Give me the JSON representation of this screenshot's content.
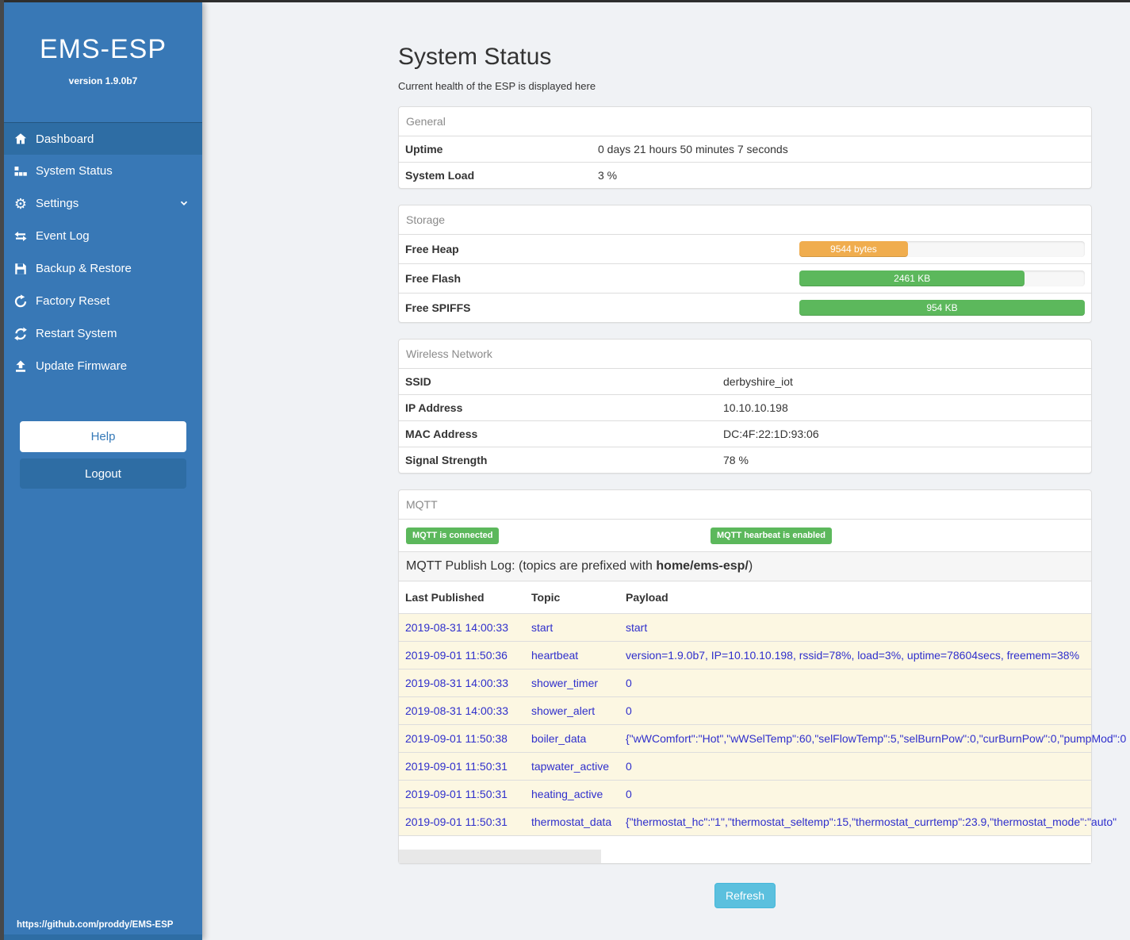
{
  "sidebar": {
    "brand": "EMS-ESP",
    "version": "version 1.9.0b7",
    "items": [
      {
        "label": "Dashboard",
        "icon": "home-icon",
        "active": true
      },
      {
        "label": "System Status",
        "icon": "chart-blocks-icon",
        "active": false
      },
      {
        "label": "Settings",
        "icon": "gear-icon",
        "active": false,
        "chevron": "chevron-down-icon"
      },
      {
        "label": "Event Log",
        "icon": "exchange-arrows-icon",
        "active": false
      },
      {
        "label": "Backup & Restore",
        "icon": "floppy-icon",
        "active": false
      },
      {
        "label": "Factory Reset",
        "icon": "rotate-arrow-icon",
        "active": false
      },
      {
        "label": "Restart System",
        "icon": "refresh-arrows-icon",
        "active": false
      },
      {
        "label": "Update Firmware",
        "icon": "upload-icon",
        "active": false
      }
    ],
    "help_label": "Help",
    "logout_label": "Logout",
    "footer_link": "https://github.com/proddy/EMS-ESP"
  },
  "page": {
    "title": "System Status",
    "subtitle": "Current health of the ESP is displayed here",
    "refresh_label": "Refresh"
  },
  "general": {
    "heading": "General",
    "rows": [
      {
        "label": "Uptime",
        "value": "0 days 21 hours 50 minutes 7 seconds"
      },
      {
        "label": "System Load",
        "value": "3 %"
      }
    ]
  },
  "storage": {
    "heading": "Storage",
    "rows": [
      {
        "label": "Free Heap",
        "value": "9544 bytes",
        "percent": 38,
        "color": "#f0ad4e"
      },
      {
        "label": "Free Flash",
        "value": "2461 KB",
        "percent": 79,
        "color": "#5cb85c"
      },
      {
        "label": "Free SPIFFS",
        "value": "954 KB",
        "percent": 100,
        "color": "#5cb85c"
      }
    ]
  },
  "wireless": {
    "heading": "Wireless Network",
    "rows": [
      {
        "label": "SSID",
        "value": "derbyshire_iot"
      },
      {
        "label": "IP Address",
        "value": "10.10.10.198"
      },
      {
        "label": "MAC Address",
        "value": "DC:4F:22:1D:93:06"
      },
      {
        "label": "Signal Strength",
        "value": "78 %"
      }
    ]
  },
  "mqtt": {
    "heading": "MQTT",
    "badges": [
      "MQTT is connected",
      "MQTT hearbeat is enabled"
    ],
    "log_title_prefix": "MQTT Publish Log: (topics are prefixed with ",
    "log_title_bold": "home/ems-esp/",
    "log_title_suffix": ")",
    "columns": [
      "Last Published",
      "Topic",
      "Payload"
    ],
    "rows": [
      {
        "published": "2019-08-31 14:00:33",
        "topic": "start",
        "payload": "start"
      },
      {
        "published": "2019-09-01 11:50:36",
        "topic": "heartbeat",
        "payload": "version=1.9.0b7, IP=10.10.10.198, rssid=78%, load=3%, uptime=78604secs, freemem=38%"
      },
      {
        "published": "2019-08-31 14:00:33",
        "topic": "shower_timer",
        "payload": "0"
      },
      {
        "published": "2019-08-31 14:00:33",
        "topic": "shower_alert",
        "payload": "0"
      },
      {
        "published": "2019-09-01 11:50:38",
        "topic": "boiler_data",
        "payload": "{\"wWComfort\":\"Hot\",\"wWSelTemp\":60,\"selFlowTemp\":5,\"selBurnPow\":0,\"curBurnPow\":0,\"pumpMod\":0"
      },
      {
        "published": "2019-09-01 11:50:31",
        "topic": "tapwater_active",
        "payload": "0"
      },
      {
        "published": "2019-09-01 11:50:31",
        "topic": "heating_active",
        "payload": "0"
      },
      {
        "published": "2019-09-01 11:50:31",
        "topic": "thermostat_data",
        "payload": "{\"thermostat_hc\":\"1\",\"thermostat_seltemp\":15,\"thermostat_currtemp\":23.9,\"thermostat_mode\":\"auto\""
      }
    ]
  },
  "colors": {
    "sidebar": "#3878b6",
    "sidebar_active": "#2e6da4",
    "success": "#5cb85c",
    "warning": "#f0ad4e",
    "info_button": "#5bc0de",
    "log_row_bg": "#fcf7e2",
    "log_link": "#2f2fcc"
  }
}
